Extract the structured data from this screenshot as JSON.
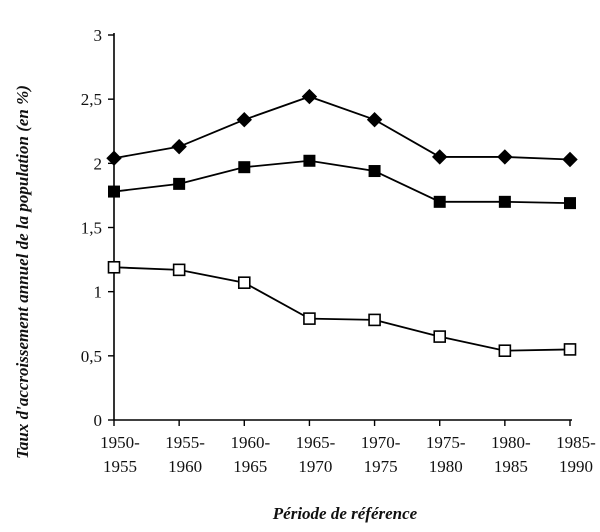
{
  "chart_data": {
    "type": "line",
    "title": "",
    "xlabel": "Période de référence",
    "ylabel": "Taux d'accroissement annuel de la population (en %)",
    "categories": [
      [
        "1950-",
        "1955"
      ],
      [
        "1955-",
        "1960"
      ],
      [
        "1960-",
        "1965"
      ],
      [
        "1965-",
        "1970"
      ],
      [
        "1970-",
        "1975"
      ],
      [
        "1975-",
        "1980"
      ],
      [
        "1980-",
        "1985"
      ],
      [
        "1985-",
        "1990"
      ]
    ],
    "ylim": [
      0,
      3
    ],
    "yticks": [
      "0",
      "0,5",
      "1",
      "1,5",
      "2",
      "2,5",
      "3"
    ],
    "yticks_values": [
      0,
      0.5,
      1,
      1.5,
      2,
      2.5,
      3
    ],
    "grid": false,
    "legend": "none",
    "series": [
      {
        "marker": "filled-diamond",
        "color": "#000000",
        "values": [
          2.04,
          2.13,
          2.34,
          2.52,
          2.34,
          2.05,
          2.05,
          2.03
        ]
      },
      {
        "marker": "filled-square",
        "color": "#000000",
        "values": [
          1.78,
          1.84,
          1.97,
          2.02,
          1.94,
          1.7,
          1.7,
          1.69
        ]
      },
      {
        "marker": "open-square",
        "color": "#000000",
        "values": [
          1.19,
          1.17,
          1.07,
          0.79,
          0.78,
          0.65,
          0.54,
          0.55
        ]
      }
    ]
  }
}
